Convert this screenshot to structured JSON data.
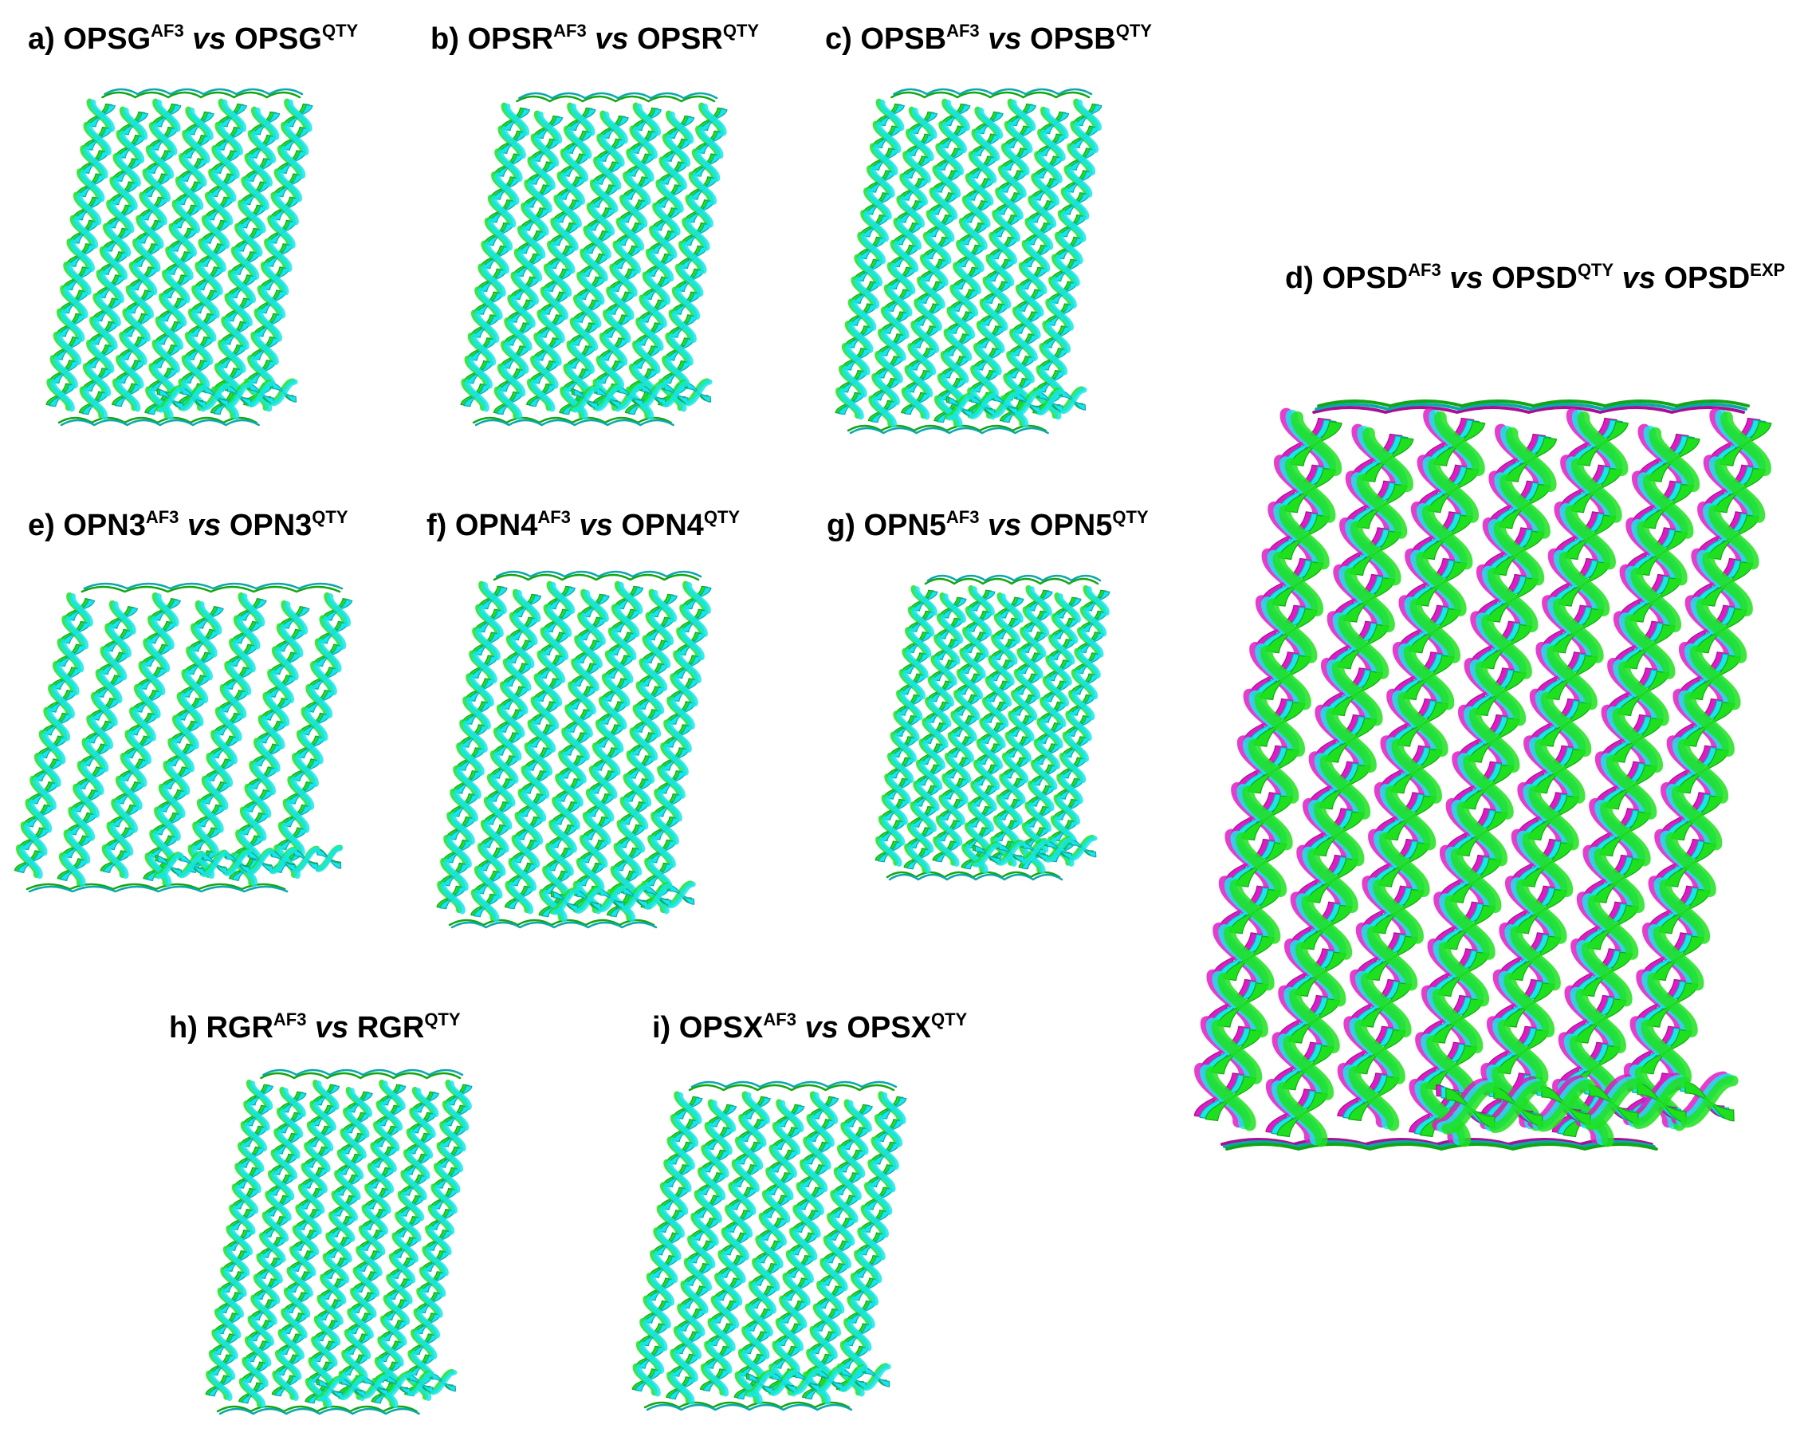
{
  "colors": {
    "af3": "#1fe01f",
    "qty": "#18e6ea",
    "exp": "#e01bc6",
    "af3_dark": "#13a613",
    "qty_dark": "#0aa8ad",
    "exp_dark": "#a80f92"
  },
  "panels": [
    {
      "id": "a",
      "prefix": "a)",
      "name1": "OPSG",
      "sup1": "AF3",
      "vs": "vs",
      "name2": "OPSG",
      "sup2": "QTY",
      "icon": "protein-overlay-icon"
    },
    {
      "id": "b",
      "prefix": "b)",
      "name1": "OPSR",
      "sup1": "AF3",
      "vs": "vs",
      "name2": "OPSR",
      "sup2": "QTY",
      "icon": "protein-overlay-icon"
    },
    {
      "id": "c",
      "prefix": "c)",
      "name1": "OPSB",
      "sup1": "AF3",
      "vs": "vs",
      "name2": "OPSB",
      "sup2": "QTY",
      "icon": "protein-overlay-icon"
    },
    {
      "id": "d",
      "prefix": "d)",
      "name1": "OPSD",
      "sup1": "AF3",
      "vs": "vs",
      "name2": "OPSD",
      "sup2": "QTY",
      "vs2": "vs",
      "name3": "OPSD",
      "sup3": "EXP",
      "icon": "protein-overlay-icon"
    },
    {
      "id": "e",
      "prefix": "e)",
      "name1": "OPN3",
      "sup1": "AF3",
      "vs": "vs",
      "name2": "OPN3",
      "sup2": "QTY",
      "icon": "protein-overlay-icon"
    },
    {
      "id": "f",
      "prefix": "f)",
      "name1": "OPN4",
      "sup1": "AF3",
      "vs": "vs",
      "name2": "OPN4",
      "sup2": "QTY",
      "icon": "protein-overlay-icon"
    },
    {
      "id": "g",
      "prefix": "g)",
      "name1": "OPN5",
      "sup1": "AF3",
      "vs": "vs",
      "name2": "OPN5",
      "sup2": "QTY",
      "icon": "protein-overlay-icon"
    },
    {
      "id": "h",
      "prefix": "h)",
      "name1": "RGR",
      "sup1": "AF3",
      "vs": "vs",
      "name2": "RGR",
      "sup2": "QTY",
      "icon": "protein-overlay-icon"
    },
    {
      "id": "i",
      "prefix": "i)",
      "name1": "OPSX",
      "sup1": "AF3",
      "vs": "vs",
      "name2": "OPSX",
      "sup2": "QTY",
      "icon": "protein-overlay-icon"
    }
  ]
}
